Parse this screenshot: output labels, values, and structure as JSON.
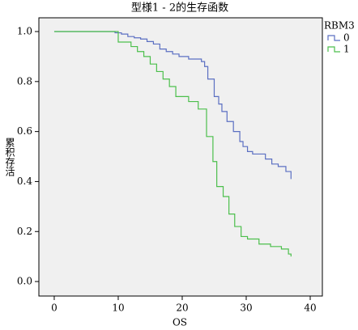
{
  "chart_data": {
    "type": "step",
    "title": "型様1 - 2的生存函数",
    "x_label": "OS",
    "y_label": "累积存活",
    "legend_title": "RBM3",
    "xlim": [
      -2.4,
      41.9
    ],
    "ylim": [
      -0.058,
      1.055
    ],
    "xticks": [
      0,
      10,
      20,
      30,
      40
    ],
    "yticks": [
      {
        "value": 0,
        "label": "0.0"
      },
      {
        "value": 0.2,
        "label": "0.2"
      },
      {
        "value": 0.4,
        "label": "0.4"
      },
      {
        "value": 0.6,
        "label": "0.6"
      },
      {
        "value": 0.8,
        "label": "0.8"
      },
      {
        "value": 1,
        "label": "1.0"
      }
    ],
    "series": [
      {
        "name": "0",
        "color": "#5b6fc2",
        "x": [
          0,
          9.5,
          10.5,
          11.5,
          12.5,
          13.5,
          14.5,
          15.5,
          16.5,
          17.5,
          18.5,
          19.5,
          21,
          23,
          23.5,
          24,
          25,
          25.7,
          26.2,
          27,
          28,
          29,
          29.5,
          30.2,
          31,
          33,
          34,
          35,
          36.2,
          37
        ],
        "values": [
          1,
          0.995,
          0.99,
          0.98,
          0.975,
          0.97,
          0.96,
          0.95,
          0.93,
          0.92,
          0.91,
          0.9,
          0.89,
          0.88,
          0.86,
          0.81,
          0.74,
          0.71,
          0.68,
          0.64,
          0.6,
          0.56,
          0.54,
          0.52,
          0.51,
          0.49,
          0.47,
          0.46,
          0.44,
          0.41
        ]
      },
      {
        "name": "1",
        "color": "#4cbf4c",
        "x": [
          0,
          10,
          12,
          13,
          14,
          15,
          16,
          17,
          18,
          19,
          21,
          22.5,
          23.8,
          24.8,
          25.4,
          26.4,
          27.3,
          28.2,
          29.2,
          30.2,
          32,
          33.8,
          35.5,
          36.6,
          37
        ],
        "values": [
          1,
          0.958,
          0.94,
          0.92,
          0.9,
          0.87,
          0.84,
          0.81,
          0.78,
          0.74,
          0.72,
          0.69,
          0.58,
          0.48,
          0.38,
          0.34,
          0.27,
          0.22,
          0.18,
          0.17,
          0.15,
          0.14,
          0.13,
          0.11,
          0.1
        ]
      }
    ]
  }
}
